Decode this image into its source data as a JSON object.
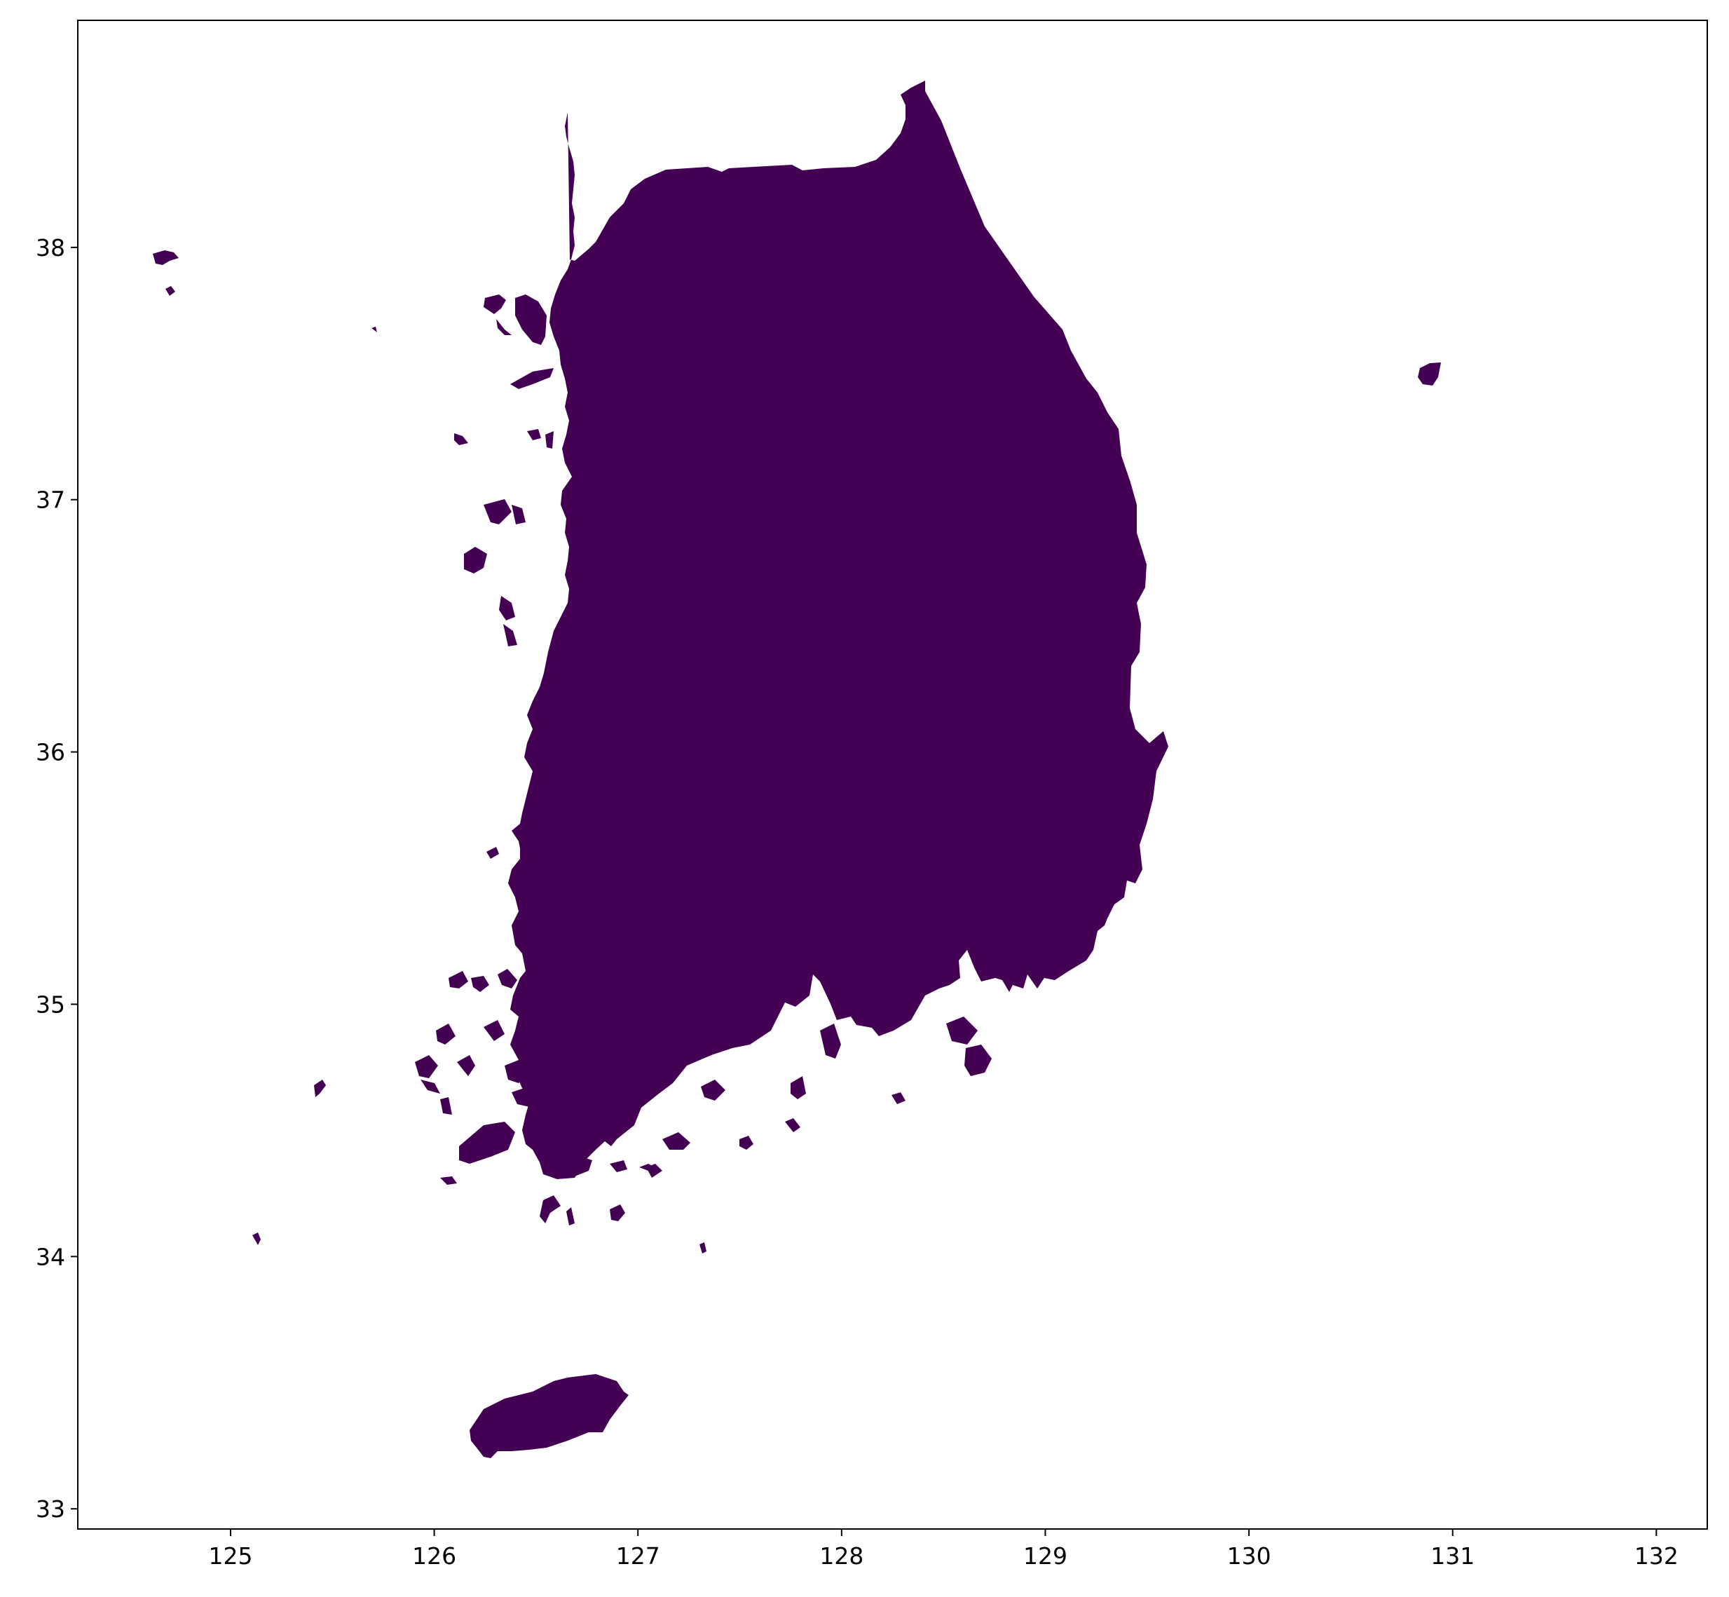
{
  "map": {
    "type": "choropleth",
    "region": "South Korea",
    "fill_color": "#440154",
    "background_color": "#ffffff",
    "xlim": [
      124.25,
      132.25
    ],
    "ylim": [
      32.92,
      38.9
    ],
    "x_ticks": [
      "125",
      "126",
      "127",
      "128",
      "129",
      "130",
      "131",
      "132"
    ],
    "y_ticks": [
      "33",
      "34",
      "35",
      "36",
      "37",
      "38"
    ],
    "grid": false,
    "legend": "none"
  }
}
